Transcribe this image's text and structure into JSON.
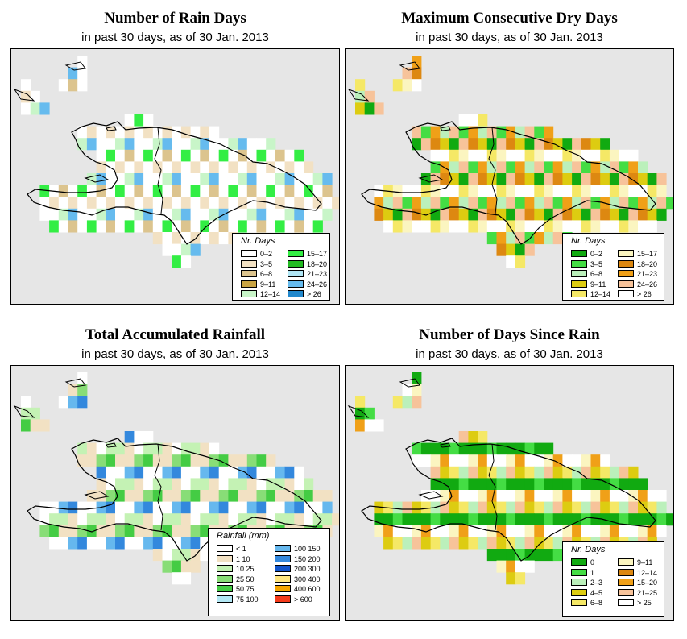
{
  "panels": [
    {
      "id": "rain-days",
      "title": "Number of Rain Days",
      "subtitle": "in past 30 days, as of  30 Jan. 2013",
      "legend": {
        "title": "Nr. Days",
        "items": [
          {
            "label": "0–2",
            "color": "#ffffff"
          },
          {
            "label": "3–5",
            "color": "#f2e1c3"
          },
          {
            "label": "6–8",
            "color": "#dcc48e"
          },
          {
            "label": "9–11",
            "color": "#c9a443"
          },
          {
            "label": "12–14",
            "color": "#c8f5c8"
          },
          {
            "label": "15–17",
            "color": "#33ee44"
          },
          {
            "label": "18–20",
            "color": "#22bb22"
          },
          {
            "label": "21–23",
            "color": "#b0e6f5"
          },
          {
            "label": "24–26",
            "color": "#66bbee"
          },
          {
            "label": "> 26",
            "color": "#2288cc"
          }
        ]
      }
    },
    {
      "id": "dry-days",
      "title": "Maximum Consecutive Dry Days",
      "subtitle": "in past 30 days, as of  30 Jan. 2013",
      "legend": {
        "title": "Nr. Days",
        "items": [
          {
            "label": "0–2",
            "color": "#11aa11"
          },
          {
            "label": "3–5",
            "color": "#44dd44"
          },
          {
            "label": "6–8",
            "color": "#bbf0bb"
          },
          {
            "label": "9–11",
            "color": "#ddcc11"
          },
          {
            "label": "12–14",
            "color": "#f5e866"
          },
          {
            "label": "15–17",
            "color": "#fbf5c0"
          },
          {
            "label": "18–20",
            "color": "#dd8811"
          },
          {
            "label": "21–23",
            "color": "#f0a018"
          },
          {
            "label": "24–26",
            "color": "#f7c39a"
          },
          {
            "label": "> 26",
            "color": "#ffffff"
          }
        ]
      }
    },
    {
      "id": "rainfall",
      "title": "Total Accumulated Rainfall",
      "subtitle": "in past 30 days, as of  30 Jan. 2013",
      "legend": {
        "title": "Rainfall (mm)",
        "items": [
          {
            "label": "< 1",
            "color": "#ffffff"
          },
          {
            "label": "1    10",
            "color": "#f2e1c3"
          },
          {
            "label": "10    25",
            "color": "#c4f2b4"
          },
          {
            "label": "25    50",
            "color": "#88dd77"
          },
          {
            "label": "50    75",
            "color": "#44cc44"
          },
          {
            "label": "75   100",
            "color": "#b3e8f5"
          },
          {
            "label": "100  150",
            "color": "#66b8ee"
          },
          {
            "label": "150  200",
            "color": "#3388dd"
          },
          {
            "label": "200  300",
            "color": "#1155cc"
          },
          {
            "label": "300  400",
            "color": "#ffe680"
          },
          {
            "label": "400  600",
            "color": "#f5a500"
          },
          {
            "label": "> 600",
            "color": "#f53a1a"
          }
        ]
      }
    },
    {
      "id": "since-rain",
      "title": "Number of Days Since Rain",
      "subtitle": "in past 30 days, as of  30 Jan. 2013",
      "legend": {
        "title": "Nr. Days",
        "items": [
          {
            "label": "0",
            "color": "#11aa11"
          },
          {
            "label": "1",
            "color": "#44dd44"
          },
          {
            "label": "2–3",
            "color": "#bbf0bb"
          },
          {
            "label": "4–5",
            "color": "#ddcc11"
          },
          {
            "label": "6–8",
            "color": "#f5e866"
          },
          {
            "label": "9–11",
            "color": "#fbf5c0"
          },
          {
            "label": "12–14",
            "color": "#dd8811"
          },
          {
            "label": "15–20",
            "color": "#f0a018"
          },
          {
            "label": "21–25",
            "color": "#f7c39a"
          },
          {
            "label": "> 25",
            "color": "#ffffff"
          }
        ]
      }
    }
  ]
}
